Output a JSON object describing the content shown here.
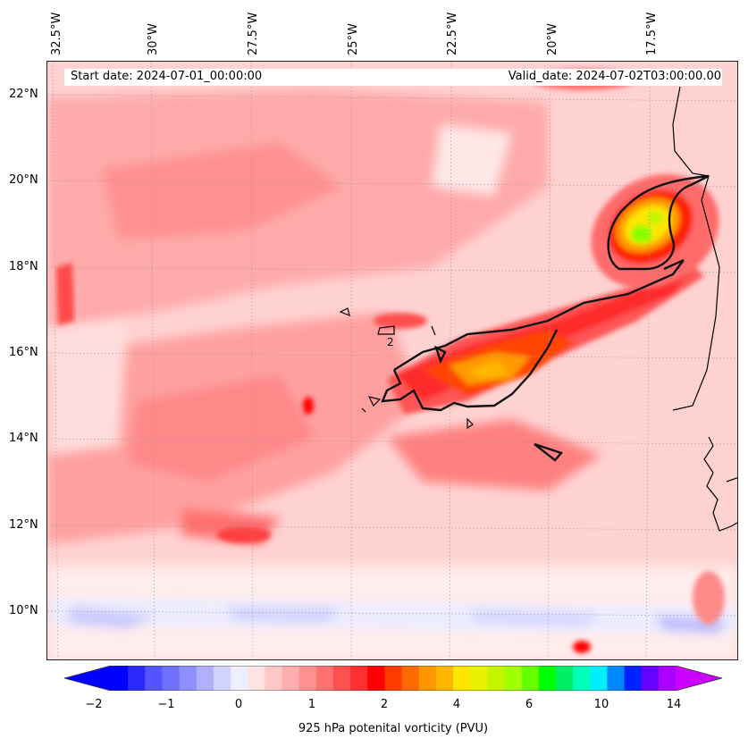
{
  "header": {
    "start_date": "Start date: 2024-07-01_00:00:00",
    "valid_date": "Valid_date: 2024-07-02T03:00:00.00"
  },
  "map": {
    "longitude_labels": [
      "32.5°W",
      "30°W",
      "27.5°W",
      "25°W",
      "22.5°W",
      "20°W",
      "17.5°W"
    ],
    "latitude_labels": [
      "22°N",
      "20°N",
      "18°N",
      "16°N",
      "14°N",
      "12°N",
      "10°N"
    ],
    "contour_label": "2",
    "lon_range": [
      -32.6,
      -15.2
    ],
    "lat_range": [
      8.9,
      22.7
    ],
    "gridlines": true,
    "coastline": "west-africa"
  },
  "colorbar": {
    "label": "925 hPa potenital vorticity (PVU)",
    "ticks": [
      "−2",
      "−1",
      "0",
      "1",
      "2",
      "4",
      "6",
      "10",
      "14"
    ],
    "colors": [
      "#0000ff",
      "#2a2aff",
      "#5555ff",
      "#7070ff",
      "#8f8fff",
      "#b0b0ff",
      "#d2d2ff",
      "#eeeeff",
      "#ffe3e3",
      "#ffc8c8",
      "#ffadad",
      "#ff9090",
      "#ff7070",
      "#ff5050",
      "#ff3030",
      "#ff0000",
      "#ff3c00",
      "#ff6a00",
      "#ff9600",
      "#ffb400",
      "#ffe400",
      "#e8f000",
      "#c4f500",
      "#a0ff00",
      "#66ff00",
      "#00ff00",
      "#00ee66",
      "#00ffbb",
      "#00eeff",
      "#0088ff",
      "#0022ff",
      "#6600ff",
      "#aa00ff"
    ],
    "left_extend_color": "#0000ff",
    "right_extend_color": "#cc00ff"
  }
}
